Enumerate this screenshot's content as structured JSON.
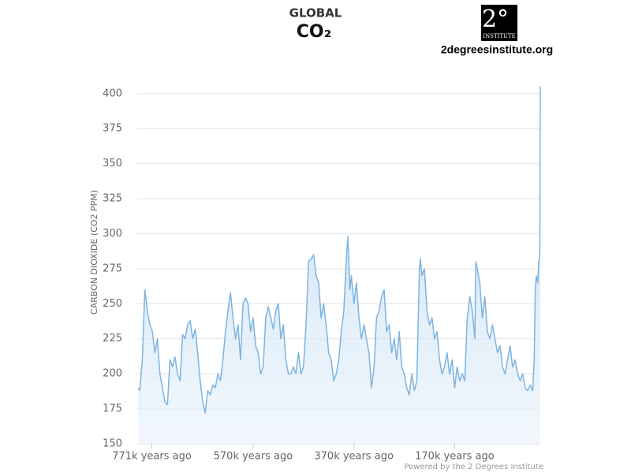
{
  "chart_data": {
    "type": "area",
    "title": "GLOBAL",
    "subtitle": "CO₂",
    "logo": {
      "mark": "2°",
      "name": "INSTITUTE",
      "url": "2degreesinstitute.org"
    },
    "y_label": "CARBON DIOXIDE (CO2 PPM)",
    "credit": "Powered by the 2 Degrees Institute",
    "color": "#7db4e0",
    "xlim": [
      800,
      0
    ],
    "xticks": [
      {
        "value": 771,
        "label": "771k years ago"
      },
      {
        "value": 570,
        "label": "570k years ago"
      },
      {
        "value": 370,
        "label": "370k years ago"
      },
      {
        "value": 170,
        "label": "170k years ago"
      }
    ],
    "ylim": [
      150,
      410
    ],
    "yticks": [
      150,
      175,
      200,
      225,
      250,
      275,
      300,
      325,
      350,
      375,
      400
    ],
    "grid": true,
    "x": [
      798,
      795,
      790,
      785,
      780,
      775,
      770,
      765,
      760,
      755,
      750,
      745,
      740,
      735,
      730,
      725,
      720,
      715,
      710,
      705,
      700,
      695,
      690,
      685,
      680,
      675,
      670,
      665,
      660,
      655,
      650,
      645,
      640,
      635,
      630,
      625,
      620,
      615,
      610,
      605,
      600,
      595,
      590,
      585,
      580,
      575,
      570,
      565,
      560,
      555,
      550,
      545,
      540,
      535,
      530,
      525,
      520,
      515,
      510,
      505,
      500,
      495,
      490,
      485,
      480,
      475,
      470,
      465,
      460,
      455,
      450,
      445,
      440,
      435,
      430,
      425,
      420,
      415,
      410,
      405,
      400,
      395,
      390,
      385,
      382,
      378,
      375,
      370,
      365,
      360,
      355,
      350,
      345,
      340,
      335,
      330,
      325,
      320,
      315,
      310,
      305,
      300,
      295,
      290,
      285,
      280,
      275,
      270,
      265,
      260,
      255,
      250,
      245,
      240,
      238,
      235,
      230,
      225,
      220,
      215,
      210,
      205,
      200,
      195,
      190,
      185,
      180,
      175,
      170,
      165,
      160,
      155,
      150,
      145,
      140,
      135,
      130,
      128,
      125,
      120,
      115,
      110,
      105,
      100,
      95,
      90,
      85,
      80,
      75,
      70,
      65,
      60,
      55,
      50,
      45,
      40,
      35,
      30,
      25,
      20,
      15,
      12,
      10,
      8,
      5,
      3,
      1,
      0
    ],
    "values": [
      190,
      188,
      210,
      260,
      245,
      235,
      230,
      215,
      225,
      200,
      190,
      180,
      178,
      210,
      205,
      212,
      200,
      195,
      228,
      225,
      235,
      238,
      225,
      232,
      215,
      195,
      180,
      172,
      188,
      185,
      192,
      190,
      200,
      195,
      210,
      230,
      245,
      258,
      240,
      225,
      235,
      210,
      250,
      254,
      250,
      230,
      240,
      220,
      215,
      200,
      205,
      240,
      248,
      240,
      232,
      245,
      250,
      225,
      235,
      210,
      200,
      200,
      205,
      200,
      215,
      200,
      205,
      235,
      280,
      282,
      285,
      270,
      265,
      240,
      250,
      235,
      215,
      210,
      195,
      200,
      210,
      230,
      245,
      282,
      298,
      260,
      270,
      250,
      265,
      240,
      225,
      235,
      225,
      215,
      190,
      205,
      240,
      245,
      255,
      260,
      230,
      235,
      215,
      225,
      210,
      230,
      205,
      200,
      190,
      185,
      200,
      188,
      195,
      275,
      282,
      270,
      275,
      245,
      235,
      240,
      225,
      230,
      210,
      200,
      205,
      215,
      200,
      210,
      190,
      205,
      195,
      200,
      195,
      240,
      255,
      245,
      225,
      280,
      275,
      265,
      240,
      255,
      230,
      225,
      235,
      225,
      215,
      220,
      205,
      200,
      210,
      220,
      205,
      210,
      200,
      195,
      200,
      190,
      188,
      192,
      188,
      210,
      260,
      270,
      265,
      280,
      285,
      405
    ]
  }
}
